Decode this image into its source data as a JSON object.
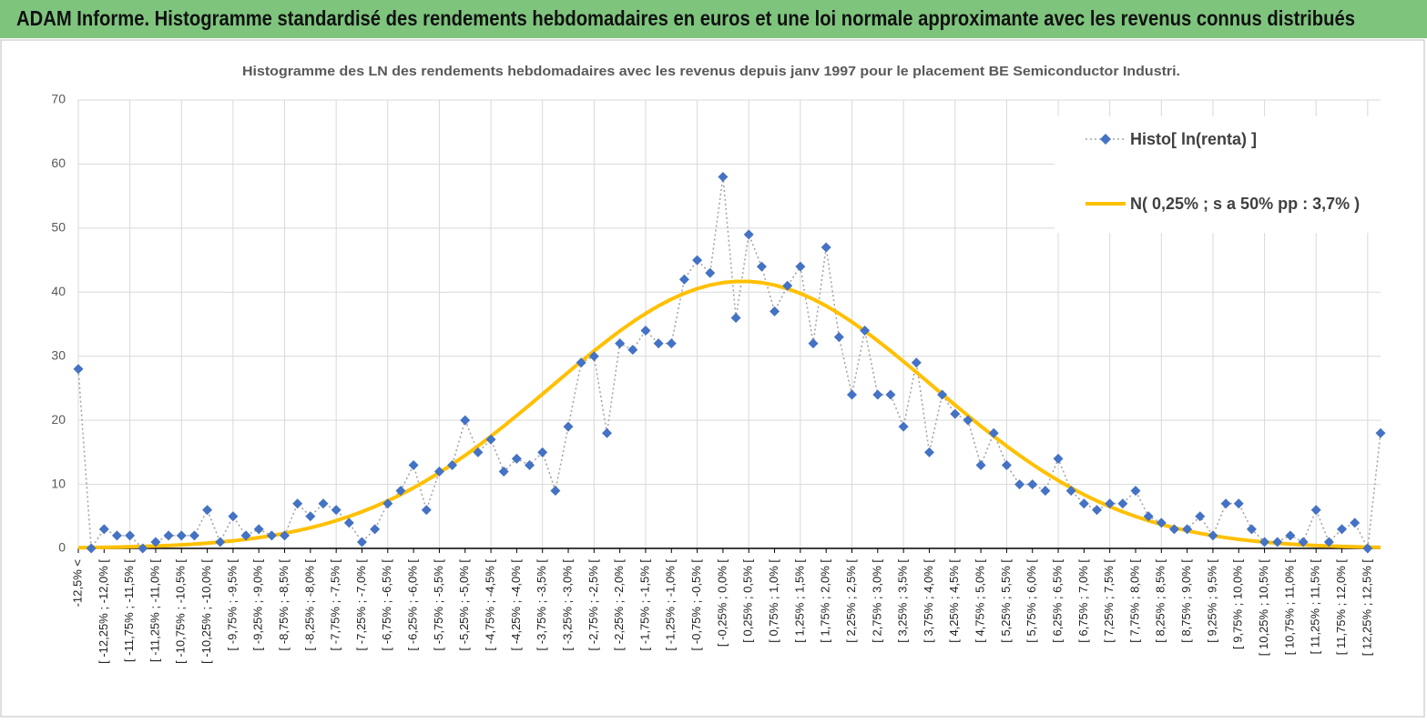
{
  "header": {
    "title": "ADAM Informe. Histogramme standardisé des rendements hebdomadaires en euros et une loi normale approximante avec les revenus connus distribués"
  },
  "chart_data": {
    "type": "line",
    "title": "Histogramme  des LN des rendements hebdomadaires avec les revenus depuis janv 1997 pour le placement BE Semiconductor Industri.",
    "categories": [
      "-12,5% <",
      null,
      "[ -12,25% ; -12,0% [",
      null,
      "[ -11,75% ; -11,5% [",
      null,
      "[ -11,25% ; -11,0% [",
      null,
      "[ -10,75% ; -10,5% [",
      null,
      "[ -10,25% ; -10,0% [",
      null,
      "[ -9,75% ; -9,5% [",
      null,
      "[ -9,25% ; -9,0% [",
      null,
      "[ -8,75% ; -8,5% [",
      null,
      "[ -8,25% ; -8,0% [",
      null,
      "[ -7,75% ; -7,5% [",
      null,
      "[ -7,25% ; -7,0% [",
      null,
      "[ -6,75% ; -6,5% [",
      null,
      "[ -6,25% ; -6,0% [",
      null,
      "[ -5,75% ; -5,5% [",
      null,
      "[ -5,25% ; -5,0% [",
      null,
      "[ -4,75% ; -4,5% [",
      null,
      "[ -4,25% ; -4,0% [",
      null,
      "[ -3,75% ; -3,5% [",
      null,
      "[ -3,25% ; -3,0% [",
      null,
      "[ -2,75% ; -2,5% [",
      null,
      "[ -2,25% ; -2,0% [",
      null,
      "[ -1,75% ; -1,5% [",
      null,
      "[ -1,25% ; -1,0% [",
      null,
      "[ -0,75% ; -0,5% [",
      null,
      "[ -0,25% ; 0,0% [",
      null,
      "[ 0,25% ; 0,5% [",
      null,
      "[ 0,75% ; 1,0% [",
      null,
      "[ 1,25% ; 1,5% [",
      null,
      "[ 1,75% ; 2,0% [",
      null,
      "[ 2,25% ; 2,5% [",
      null,
      "[ 2,75% ; 3,0% [",
      null,
      "[ 3,25% ; 3,5% [",
      null,
      "[ 3,75% ; 4,0% [",
      null,
      "[ 4,25% ; 4,5% [",
      null,
      "[ 4,75% ; 5,0% [",
      null,
      "[ 5,25% ; 5,5% [",
      null,
      "[ 5,75% ; 6,0% [",
      null,
      "[ 6,25% ; 6,5% [",
      null,
      "[ 6,75% ; 7,0% [",
      null,
      "[ 7,25% ; 7,5% [",
      null,
      "[ 7,75% ; 8,0% [",
      null,
      "[ 8,25% ; 8,5% [",
      null,
      "[ 8,75% ; 9,0% [",
      null,
      "[ 9,25% ; 9,5% [",
      null,
      "[ 9,75% ; 10,0% [",
      null,
      "[ 10,25% ; 10,5% [",
      null,
      "[ 10,75% ; 11,0% [",
      null,
      "[ 11,25% ; 11,5% [",
      null,
      "[ 11,75% ; 12,0% [",
      null,
      "[ 12,25% ; 12,5% [",
      null
    ],
    "series": [
      {
        "name": "Histo[ ln(renta) ]",
        "color": "#4472c4",
        "line_color": "#a5a5a5",
        "values": [
          28,
          0,
          3,
          2,
          2,
          0,
          1,
          2,
          2,
          2,
          6,
          1,
          5,
          2,
          3,
          2,
          2,
          7,
          5,
          7,
          6,
          4,
          1,
          3,
          7,
          9,
          13,
          6,
          12,
          13,
          20,
          15,
          17,
          12,
          14,
          13,
          15,
          9,
          19,
          29,
          30,
          18,
          32,
          31,
          34,
          32,
          32,
          42,
          45,
          43,
          58,
          36,
          49,
          44,
          37,
          41,
          44,
          32,
          47,
          33,
          24,
          34,
          24,
          24,
          19,
          29,
          15,
          24,
          21,
          20,
          13,
          18,
          13,
          10,
          10,
          9,
          14,
          9,
          7,
          6,
          7,
          7,
          9,
          5,
          4,
          3,
          3,
          5,
          2,
          7,
          7,
          3,
          1,
          1,
          2,
          1,
          6,
          1,
          3,
          4,
          0,
          18
        ]
      },
      {
        "name": "N( 0,25% ; s a 50% pp : 3,7% )",
        "color": "#ffc000",
        "values": [
          0.1,
          0.12,
          0.16,
          0.19,
          0.24,
          0.3,
          0.37,
          0.45,
          0.55,
          0.68,
          0.82,
          0.99,
          1.18,
          1.41,
          1.68,
          1.99,
          2.35,
          2.76,
          3.22,
          3.74,
          4.33,
          4.99,
          5.72,
          6.53,
          7.42,
          8.39,
          9.45,
          10.6,
          11.82,
          13.13,
          14.52,
          15.98,
          17.51,
          19.09,
          20.73,
          22.39,
          24.09,
          25.8,
          27.51,
          29.18,
          30.83,
          32.41,
          33.94,
          35.36,
          36.67,
          37.87,
          38.91,
          39.81,
          40.55,
          41.11,
          41.49,
          41.68,
          41.68,
          41.49,
          41.11,
          40.55,
          39.81,
          38.91,
          37.87,
          36.67,
          35.36,
          33.94,
          32.41,
          30.83,
          29.18,
          27.51,
          25.8,
          24.09,
          22.39,
          20.73,
          19.09,
          17.51,
          15.98,
          14.52,
          13.13,
          11.82,
          10.6,
          9.45,
          8.39,
          7.42,
          6.53,
          5.72,
          4.99,
          4.33,
          3.74,
          3.22,
          2.76,
          2.35,
          1.99,
          1.68,
          1.41,
          1.18,
          0.99,
          0.82,
          0.68,
          0.55,
          0.45,
          0.37,
          0.3,
          0.24,
          0.19,
          0.16
        ]
      }
    ],
    "ylim": [
      0,
      70
    ],
    "yticks": [
      0,
      10,
      20,
      30,
      40,
      50,
      60,
      70
    ],
    "grid": true,
    "legend": "top-right"
  }
}
